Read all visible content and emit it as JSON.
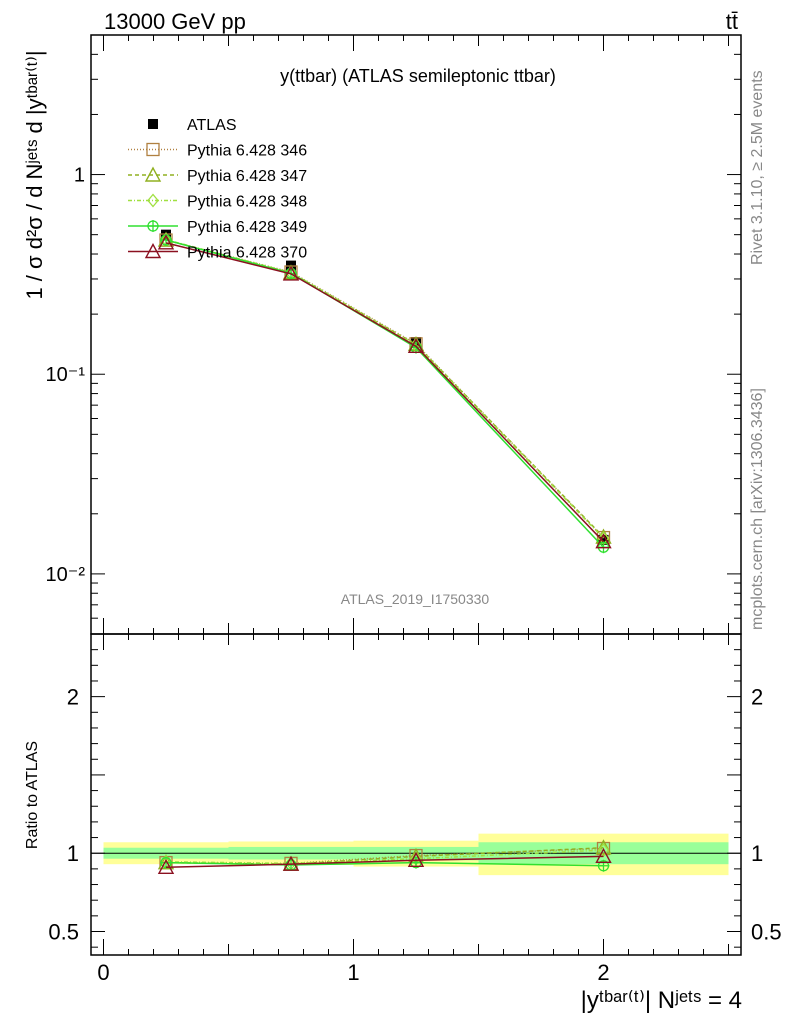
{
  "header": {
    "energy_label": "13000 GeV pp",
    "process_label": "tt̄"
  },
  "side_text": {
    "rivet": "Rivet 3.1.10, ≥ 2.5M events",
    "mcplots": "mcplots.cern.ch [arXiv:1306.3436]"
  },
  "chart_data": [
    {
      "type": "line",
      "title": "y(ttbar) (ATLAS semileptonic ttbar)",
      "watermark": "ATLAS_2019_I1750330",
      "ylabel": "1 / σ d²σ / d Nʲᵉᵗˢ d |yᵗᵇᵃʳ⁽ᵗ⁾|",
      "yscale": "log",
      "ylim": [
        0.005,
        5
      ],
      "xlim": [
        -0.05,
        2.55
      ],
      "ytick_labels": [
        "1",
        "10⁻¹",
        "10⁻²"
      ],
      "legend_position": "top-left",
      "x": [
        0.25,
        0.75,
        1.25,
        2.0
      ],
      "data": {
        "name": "ATLAS",
        "values": [
          0.5,
          0.35,
          0.145,
          0.0148
        ]
      },
      "series": [
        {
          "name": "Pythia 6.428 346",
          "color": "#b08040",
          "marker": "square-open",
          "dash": "1,2",
          "values": [
            0.47,
            0.325,
            0.142,
            0.0152
          ]
        },
        {
          "name": "Pythia 6.428 347",
          "color": "#90b020",
          "marker": "triangle-open",
          "dash": "4,3",
          "values": [
            0.47,
            0.322,
            0.141,
            0.0153
          ]
        },
        {
          "name": "Pythia 6.428 348",
          "color": "#a0e040",
          "marker": "diamond-open",
          "dash": "4,2,1,2",
          "values": [
            0.472,
            0.323,
            0.14,
            0.0151
          ]
        },
        {
          "name": "Pythia 6.428 349",
          "color": "#30e030",
          "marker": "circle-cross",
          "dash": "",
          "values": [
            0.47,
            0.32,
            0.136,
            0.0136
          ]
        },
        {
          "name": "Pythia 6.428 370",
          "color": "#8b1020",
          "marker": "triangle-open",
          "dash": "",
          "values": [
            0.455,
            0.318,
            0.138,
            0.0145
          ]
        }
      ]
    },
    {
      "type": "line",
      "ylabel": "Ratio to ATLAS",
      "xlabel": "|yᵗᵇᵃʳ⁽ᵗ⁾| Nʲᵉᵗˢ = 4",
      "ylim": [
        0.35,
        2.4
      ],
      "xlim": [
        -0.05,
        2.55
      ],
      "ytick_labels": [
        "2",
        "1",
        "0.5"
      ],
      "xtick_labels": [
        "0",
        "1",
        "2"
      ],
      "bands": [
        {
          "x0": 0.0,
          "x1": 0.5,
          "yellow": [
            0.93,
            1.07
          ],
          "green": [
            0.965,
            1.035
          ]
        },
        {
          "x0": 0.5,
          "x1": 1.0,
          "yellow": [
            0.925,
            1.075
          ],
          "green": [
            0.96,
            1.04
          ]
        },
        {
          "x0": 1.0,
          "x1": 1.5,
          "yellow": [
            0.915,
            1.08
          ],
          "green": [
            0.955,
            1.04
          ]
        },
        {
          "x0": 1.5,
          "x1": 2.5,
          "yellow": [
            0.86,
            1.125
          ],
          "green": [
            0.93,
            1.07
          ]
        }
      ],
      "x": [
        0.25,
        0.75,
        1.25,
        2.0
      ],
      "series": [
        {
          "name": "Pythia 6.428 346",
          "values": [
            0.94,
            0.935,
            0.985,
            1.03
          ]
        },
        {
          "name": "Pythia 6.428 347",
          "values": [
            0.94,
            0.93,
            0.98,
            1.035
          ]
        },
        {
          "name": "Pythia 6.428 348",
          "values": [
            0.945,
            0.935,
            0.965,
            1.02
          ]
        },
        {
          "name": "Pythia 6.428 349",
          "values": [
            0.94,
            0.925,
            0.94,
            0.92
          ]
        },
        {
          "name": "Pythia 6.428 370",
          "values": [
            0.91,
            0.93,
            0.955,
            0.98
          ]
        }
      ]
    }
  ]
}
